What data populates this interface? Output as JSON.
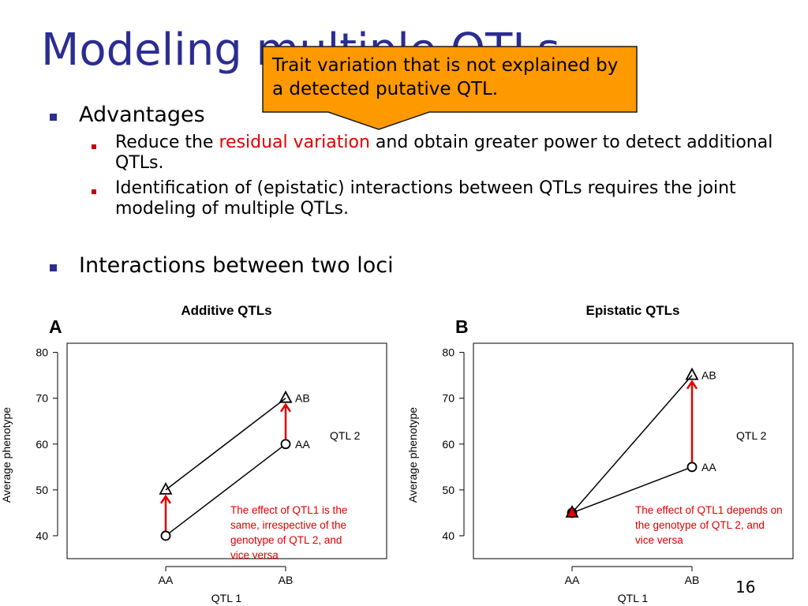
{
  "title": "Modeling multiple QTLs",
  "callout": {
    "text": "Trait variation that is not explained by a detected putative QTL."
  },
  "bullets": {
    "advantages": "Advantages",
    "sub1": {
      "pre": "Reduce the ",
      "highlight": "residual variation",
      "post": " and obtain greater power to detect additional QTLs."
    },
    "sub2": "Identification of (epistatic) interactions between QTLs requires the joint modeling of multiple QTLs.",
    "interactions": "Interactions between two loci"
  },
  "slide_number": "16",
  "colors": {
    "title": "#2b2d91",
    "callout_fill": "#ff9900",
    "highlight": "#e00000"
  },
  "chart_data": [
    {
      "type": "line",
      "panel_label": "A",
      "title": "Additive QTLs",
      "xlabel": "QTL 1",
      "ylabel": "Average phenotype",
      "categories": [
        "AA",
        "AB"
      ],
      "ylim": [
        35,
        82
      ],
      "yticks": [
        40,
        50,
        60,
        70,
        80
      ],
      "legend_title": "QTL 2",
      "series": [
        {
          "name": "AA",
          "marker": "circle",
          "values": [
            40,
            60
          ]
        },
        {
          "name": "AB",
          "marker": "triangle",
          "values": [
            50,
            70
          ]
        }
      ],
      "annotation": "The effect of QTL1 is the same, irrespective of the genotype of QTL 2, and vice versa"
    },
    {
      "type": "line",
      "panel_label": "B",
      "title": "Epistatic QTLs",
      "xlabel": "QTL 1",
      "ylabel": "Average phenotype",
      "categories": [
        "AA",
        "AB"
      ],
      "ylim": [
        35,
        82
      ],
      "yticks": [
        40,
        50,
        60,
        70,
        80
      ],
      "legend_title": "QTL 2",
      "series": [
        {
          "name": "AA",
          "marker": "circle",
          "values": [
            45,
            55
          ]
        },
        {
          "name": "AB",
          "marker": "triangle",
          "values": [
            45,
            75
          ]
        }
      ],
      "annotation": "The effect of QTL1 depends on the genotype of QTL 2, and vice versa"
    }
  ]
}
